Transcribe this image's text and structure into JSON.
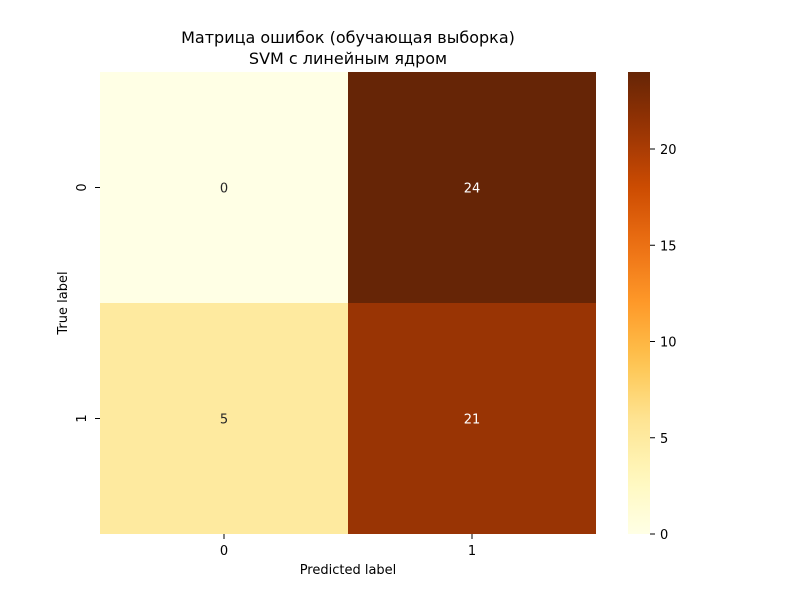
{
  "chart_data": {
    "type": "heatmap",
    "title": "Матрица ошибок (обучающая выборка)",
    "subtitle": "SVM с линейным ядром",
    "xlabel": "Predicted label",
    "ylabel": "True label",
    "x_categories": [
      "0",
      "1"
    ],
    "y_categories": [
      "0",
      "1"
    ],
    "values": [
      [
        0,
        24
      ],
      [
        5,
        21
      ]
    ],
    "colormap": "YlOrBr",
    "colorbar": {
      "min": 0,
      "max": 24,
      "ticks": [
        0,
        5,
        10,
        15,
        20
      ]
    },
    "grid": false
  }
}
